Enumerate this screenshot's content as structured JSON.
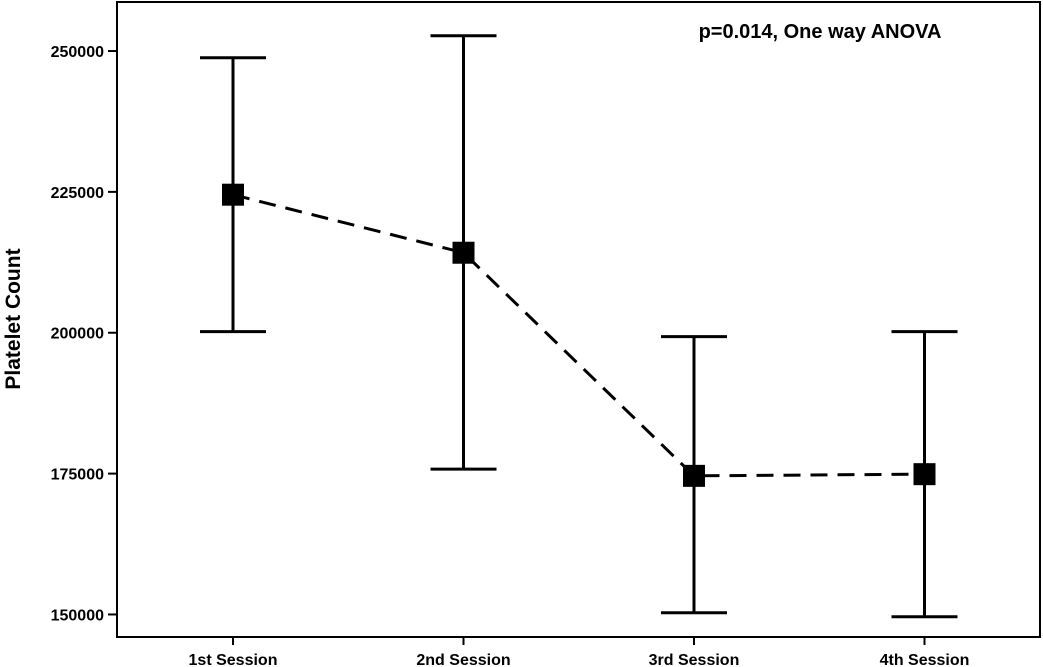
{
  "chart_data": {
    "type": "line",
    "title": "",
    "xlabel": "",
    "ylabel": "Platelet Count",
    "annotation": "p=0.014, One way ANOVA",
    "categories": [
      "1st Session",
      "2nd Session",
      "3rd Session",
      "4th Session"
    ],
    "series": [
      {
        "mean": [
          224500,
          214200,
          174600,
          174900
        ],
        "ci_lower": [
          200200,
          175800,
          150300,
          149600
        ],
        "ci_upper": [
          248800,
          252700,
          199300,
          200200
        ]
      }
    ],
    "yticks": [
      150000,
      175000,
      200000,
      225000,
      250000
    ],
    "ylim": [
      146000,
      258700
    ],
    "grid": false,
    "line_style": "dashed",
    "marker": "square"
  }
}
